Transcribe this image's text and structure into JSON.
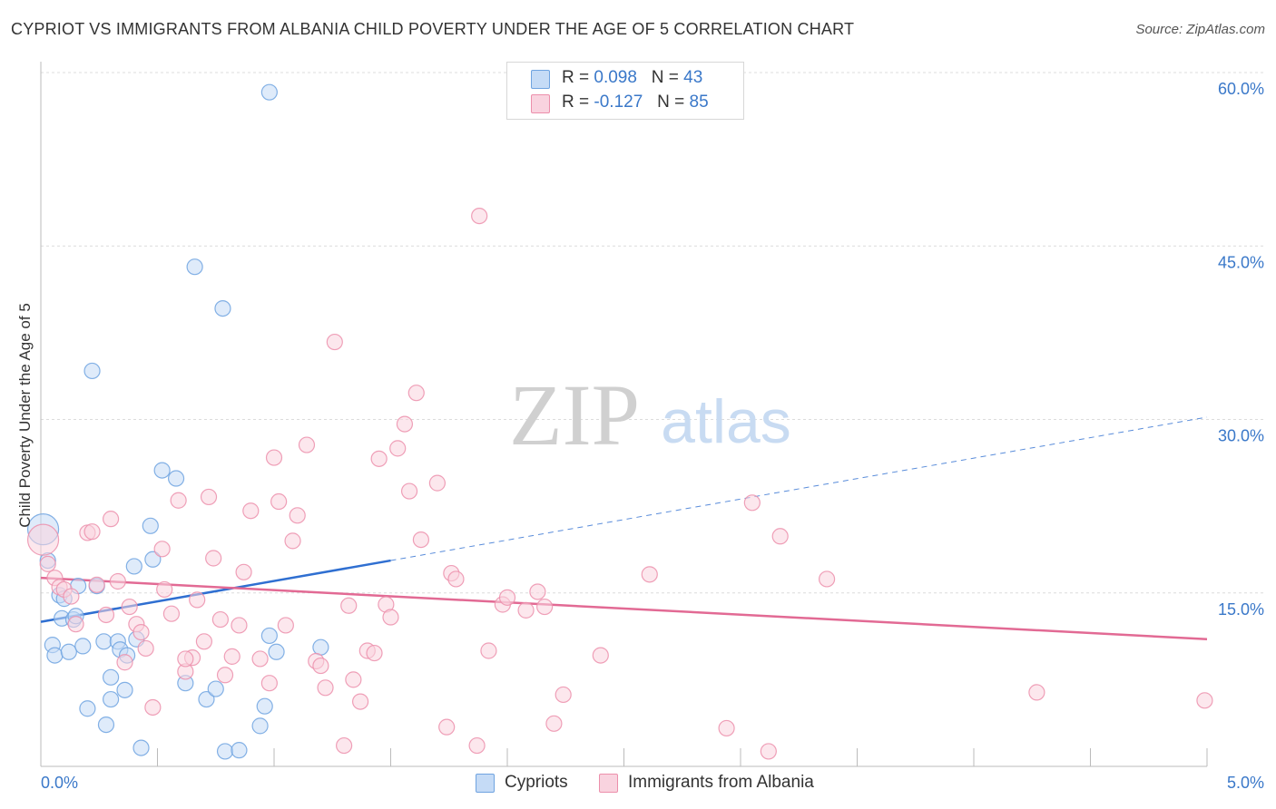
{
  "header": {
    "title": "CYPRIOT VS IMMIGRANTS FROM ALBANIA CHILD POVERTY UNDER THE AGE OF 5 CORRELATION CHART",
    "source": "Source: ZipAtlas.com"
  },
  "watermark": {
    "zip": "ZIP",
    "atlas": "atlas"
  },
  "legend": {
    "rows": [
      {
        "r_label": "R =",
        "r_value": "0.098",
        "n_label": "N =",
        "n_value": "43",
        "color": "#a9c8f0"
      },
      {
        "r_label": "R =",
        "r_value": "-0.127",
        "n_label": "N =",
        "n_value": "85",
        "color": "#f5b8cb"
      }
    ]
  },
  "bottom_legend": [
    {
      "label": "Cypriots",
      "color": "#a9c8f0"
    },
    {
      "label": "Immigrants from Albania",
      "color": "#f5b8cb"
    }
  ],
  "chart_data": {
    "type": "scatter",
    "title": "CYPRIOT VS IMMIGRANTS FROM ALBANIA CHILD POVERTY UNDER THE AGE OF 5 CORRELATION CHART",
    "xlabel": "",
    "ylabel": "Child Poverty Under the Age of 5",
    "xlim": [
      0,
      5
    ],
    "ylim": [
      0,
      60
    ],
    "x_tick_labels": [
      "0.0%",
      "5.0%"
    ],
    "y_tick_values": [
      15,
      30,
      45,
      60
    ],
    "y_tick_labels": [
      "15.0%",
      "30.0%",
      "45.0%",
      "60.0%"
    ],
    "grid": true,
    "legend_position": "top-center",
    "series": [
      {
        "name": "Cypriots",
        "color": "#6fa3e0",
        "fill": "#c5dbf6",
        "trend": {
          "x": [
            0,
            1.5
          ],
          "y": [
            12.5,
            17.8
          ],
          "color": "#2f6fd1",
          "dashed_extension": {
            "x": [
              1.5,
              5.0
            ],
            "y": [
              17.8,
              30.2
            ]
          }
        },
        "points": [
          {
            "x": 0.01,
            "y": 20.5,
            "big": true
          },
          {
            "x": 0.03,
            "y": 17.8
          },
          {
            "x": 0.05,
            "y": 10.5
          },
          {
            "x": 0.06,
            "y": 9.6
          },
          {
            "x": 0.08,
            "y": 14.8
          },
          {
            "x": 0.09,
            "y": 12.8
          },
          {
            "x": 0.1,
            "y": 14.5
          },
          {
            "x": 0.12,
            "y": 9.9
          },
          {
            "x": 0.14,
            "y": 12.7
          },
          {
            "x": 0.16,
            "y": 15.6
          },
          {
            "x": 0.18,
            "y": 10.4
          },
          {
            "x": 0.2,
            "y": 5.0
          },
          {
            "x": 0.22,
            "y": 34.2
          },
          {
            "x": 0.24,
            "y": 15.6
          },
          {
            "x": 0.27,
            "y": 10.8
          },
          {
            "x": 0.28,
            "y": 3.6
          },
          {
            "x": 0.3,
            "y": 5.8
          },
          {
            "x": 0.3,
            "y": 7.7
          },
          {
            "x": 0.33,
            "y": 10.8
          },
          {
            "x": 0.34,
            "y": 10.1
          },
          {
            "x": 0.37,
            "y": 9.6
          },
          {
            "x": 0.36,
            "y": 6.6
          },
          {
            "x": 0.4,
            "y": 17.3
          },
          {
            "x": 0.43,
            "y": 1.6
          },
          {
            "x": 0.41,
            "y": 11.0
          },
          {
            "x": 0.47,
            "y": 20.8
          },
          {
            "x": 0.48,
            "y": 17.9
          },
          {
            "x": 0.52,
            "y": 25.6
          },
          {
            "x": 0.58,
            "y": 24.9
          },
          {
            "x": 0.62,
            "y": 7.2
          },
          {
            "x": 0.66,
            "y": 43.2
          },
          {
            "x": 0.71,
            "y": 5.8
          },
          {
            "x": 0.78,
            "y": 39.6
          },
          {
            "x": 0.75,
            "y": 6.7
          },
          {
            "x": 0.79,
            "y": 1.3
          },
          {
            "x": 0.85,
            "y": 1.4
          },
          {
            "x": 0.98,
            "y": 58.3
          },
          {
            "x": 0.94,
            "y": 3.5
          },
          {
            "x": 0.96,
            "y": 5.2
          },
          {
            "x": 0.98,
            "y": 11.3
          },
          {
            "x": 1.01,
            "y": 9.9
          },
          {
            "x": 1.2,
            "y": 10.3
          },
          {
            "x": 0.15,
            "y": 13.0
          }
        ]
      },
      {
        "name": "Immigrants from Albania",
        "color": "#ec8fab",
        "fill": "#f9d3df",
        "trend": {
          "x": [
            0,
            5.0
          ],
          "y": [
            16.3,
            11.0
          ],
          "color": "#e26a94"
        },
        "points": [
          {
            "x": 0.01,
            "y": 19.6,
            "big": true
          },
          {
            "x": 0.03,
            "y": 17.5
          },
          {
            "x": 0.06,
            "y": 16.3
          },
          {
            "x": 0.08,
            "y": 15.5
          },
          {
            "x": 0.1,
            "y": 15.3
          },
          {
            "x": 0.13,
            "y": 14.7
          },
          {
            "x": 0.15,
            "y": 12.3
          },
          {
            "x": 0.2,
            "y": 20.2
          },
          {
            "x": 0.22,
            "y": 20.3
          },
          {
            "x": 0.24,
            "y": 15.7
          },
          {
            "x": 0.28,
            "y": 13.1
          },
          {
            "x": 0.3,
            "y": 21.4
          },
          {
            "x": 0.33,
            "y": 16.0
          },
          {
            "x": 0.36,
            "y": 9.0
          },
          {
            "x": 0.38,
            "y": 13.8
          },
          {
            "x": 0.41,
            "y": 12.3
          },
          {
            "x": 0.43,
            "y": 11.6
          },
          {
            "x": 0.45,
            "y": 10.2
          },
          {
            "x": 0.48,
            "y": 5.1
          },
          {
            "x": 0.52,
            "y": 18.8
          },
          {
            "x": 0.53,
            "y": 15.3
          },
          {
            "x": 0.56,
            "y": 13.2
          },
          {
            "x": 0.59,
            "y": 23.0
          },
          {
            "x": 0.62,
            "y": 8.2
          },
          {
            "x": 0.65,
            "y": 9.4
          },
          {
            "x": 0.67,
            "y": 14.4
          },
          {
            "x": 0.7,
            "y": 10.8
          },
          {
            "x": 0.72,
            "y": 23.3
          },
          {
            "x": 0.74,
            "y": 18.0
          },
          {
            "x": 0.77,
            "y": 12.7
          },
          {
            "x": 0.79,
            "y": 7.9
          },
          {
            "x": 0.82,
            "y": 9.5
          },
          {
            "x": 0.85,
            "y": 12.2
          },
          {
            "x": 0.87,
            "y": 16.8
          },
          {
            "x": 0.9,
            "y": 22.1
          },
          {
            "x": 0.94,
            "y": 9.3
          },
          {
            "x": 0.98,
            "y": 7.2
          },
          {
            "x": 1.0,
            "y": 26.7
          },
          {
            "x": 1.02,
            "y": 22.9
          },
          {
            "x": 1.05,
            "y": 12.2
          },
          {
            "x": 1.08,
            "y": 19.5
          },
          {
            "x": 1.1,
            "y": 21.7
          },
          {
            "x": 1.14,
            "y": 27.8
          },
          {
            "x": 1.18,
            "y": 9.1
          },
          {
            "x": 1.2,
            "y": 8.7
          },
          {
            "x": 1.22,
            "y": 6.8
          },
          {
            "x": 1.26,
            "y": 36.7
          },
          {
            "x": 1.3,
            "y": 1.8
          },
          {
            "x": 1.32,
            "y": 13.9
          },
          {
            "x": 1.34,
            "y": 7.5
          },
          {
            "x": 1.37,
            "y": 5.6
          },
          {
            "x": 1.4,
            "y": 10.0
          },
          {
            "x": 1.43,
            "y": 9.8
          },
          {
            "x": 1.45,
            "y": 26.6
          },
          {
            "x": 1.48,
            "y": 14.0
          },
          {
            "x": 1.5,
            "y": 12.9
          },
          {
            "x": 1.53,
            "y": 27.5
          },
          {
            "x": 1.56,
            "y": 29.6
          },
          {
            "x": 1.58,
            "y": 23.8
          },
          {
            "x": 1.61,
            "y": 32.3
          },
          {
            "x": 1.63,
            "y": 19.6
          },
          {
            "x": 1.7,
            "y": 24.5
          },
          {
            "x": 1.74,
            "y": 3.4
          },
          {
            "x": 1.76,
            "y": 16.7
          },
          {
            "x": 1.78,
            "y": 16.2
          },
          {
            "x": 1.87,
            "y": 1.8
          },
          {
            "x": 1.88,
            "y": 47.6
          },
          {
            "x": 1.92,
            "y": 10.0
          },
          {
            "x": 1.98,
            "y": 14.0
          },
          {
            "x": 2.0,
            "y": 14.6
          },
          {
            "x": 2.08,
            "y": 13.5
          },
          {
            "x": 2.13,
            "y": 15.1
          },
          {
            "x": 2.16,
            "y": 13.8
          },
          {
            "x": 2.2,
            "y": 3.7
          },
          {
            "x": 2.24,
            "y": 6.2
          },
          {
            "x": 2.4,
            "y": 9.6
          },
          {
            "x": 2.61,
            "y": 16.6
          },
          {
            "x": 2.94,
            "y": 3.3
          },
          {
            "x": 3.05,
            "y": 22.8
          },
          {
            "x": 3.12,
            "y": 1.3
          },
          {
            "x": 3.17,
            "y": 19.9
          },
          {
            "x": 3.37,
            "y": 16.2
          },
          {
            "x": 4.27,
            "y": 6.4
          },
          {
            "x": 4.99,
            "y": 5.7
          },
          {
            "x": 0.62,
            "y": 9.3
          }
        ]
      }
    ]
  }
}
